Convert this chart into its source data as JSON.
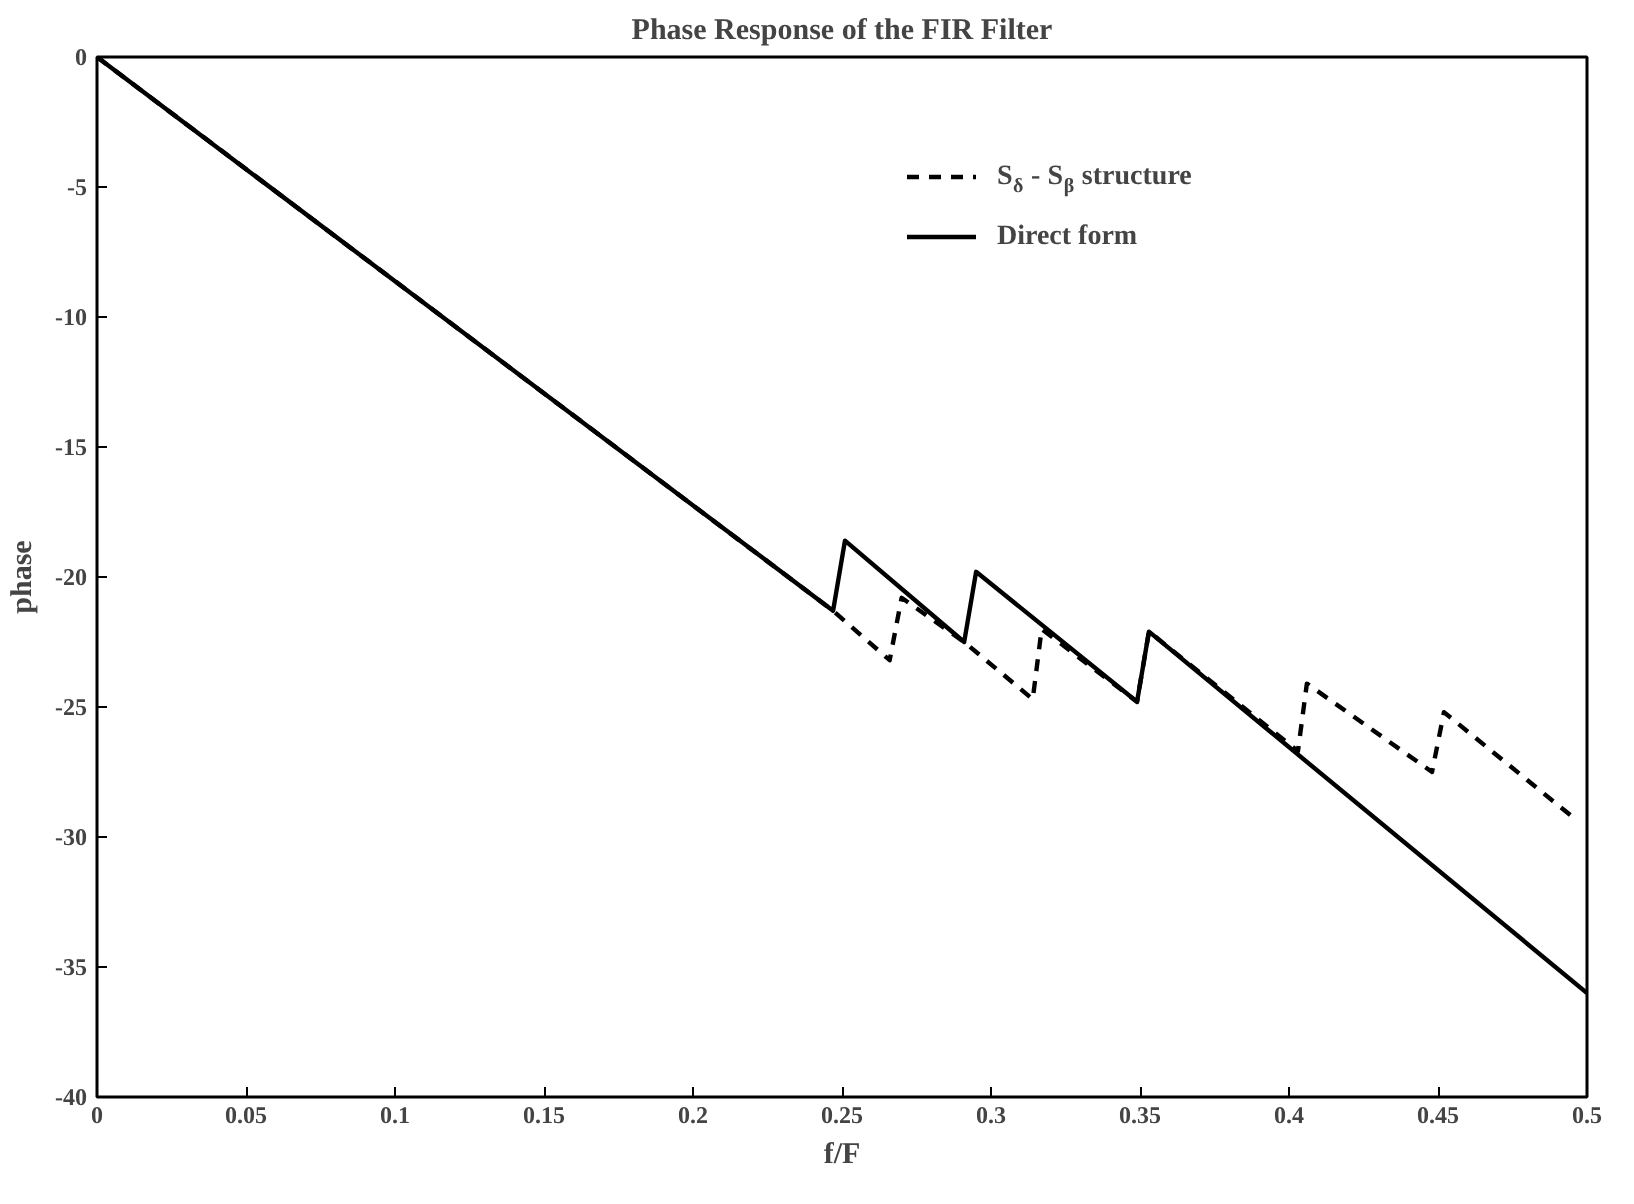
{
  "chart_data": {
    "type": "line",
    "title": "Phase Response of the FIR Filter",
    "xlabel": "f/F",
    "ylabel": "phase",
    "xlim": [
      0,
      0.5
    ],
    "xticks": [
      0,
      0.05,
      0.1,
      0.15,
      0.2,
      0.25,
      0.3,
      0.35,
      0.4,
      0.45,
      0.5
    ],
    "ylim": [
      -40,
      0
    ],
    "yticks": [
      0,
      -5,
      -10,
      -15,
      -20,
      -25,
      -30,
      -35,
      -40
    ],
    "grid": false,
    "legend": "top right",
    "series": [
      {
        "name": "S$_{δ}$ - S$_{β}$ structure",
        "color": "#000000",
        "line_style": "dashed",
        "x": [
          0,
          0.247,
          0.266,
          0.27,
          0.291,
          0.314,
          0.317,
          0.349,
          0.353,
          0.403,
          0.406,
          0.448,
          0.452,
          0.497
        ],
        "values": [
          0,
          -21.3,
          -23.2,
          -20.8,
          -22.5,
          -24.7,
          -22.0,
          -24.8,
          -22.1,
          -26.7,
          -24.1,
          -27.5,
          -25.2,
          -29.4
        ]
      },
      {
        "name": "Direct form",
        "color": "#000000",
        "line_style": "solid",
        "x": [
          0,
          0.247,
          0.251,
          0.291,
          0.295,
          0.349,
          0.353,
          0.5
        ],
        "values": [
          0,
          -21.3,
          -18.6,
          -22.5,
          -19.8,
          -24.8,
          -22.1,
          -36
        ]
      }
    ]
  }
}
